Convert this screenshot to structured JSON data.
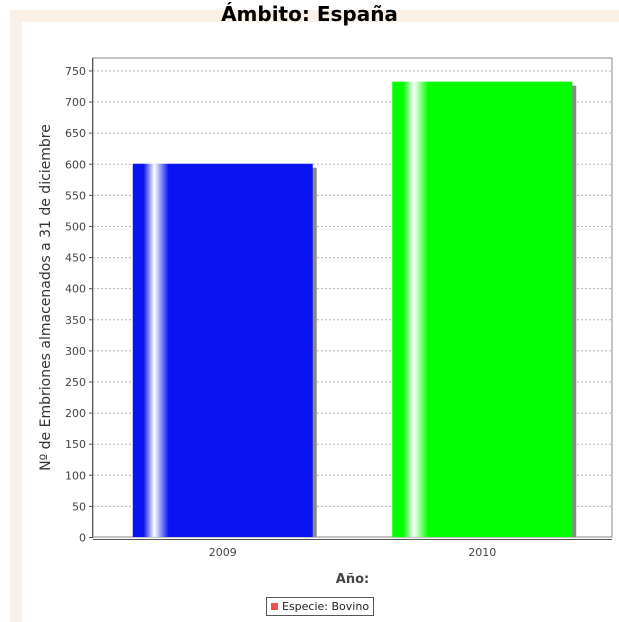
{
  "chart_data": {
    "type": "bar",
    "title": "Ámbito: España",
    "xlabel": "Año:",
    "ylabel": "Nº de Embriones almacenados a 31 de diciembre",
    "categories": [
      "2009",
      "2010"
    ],
    "series": [
      {
        "name": "Especie: Bovino",
        "values": [
          600,
          732
        ]
      }
    ],
    "bar_colors": [
      "#0a14f0",
      "#00ff00"
    ],
    "legend_color": "#f25050",
    "ylim": [
      0,
      770
    ],
    "yticks": [
      0,
      50,
      100,
      150,
      200,
      250,
      300,
      350,
      400,
      450,
      500,
      550,
      600,
      650,
      700,
      750
    ],
    "grid": true,
    "legend_position": "bottom"
  }
}
